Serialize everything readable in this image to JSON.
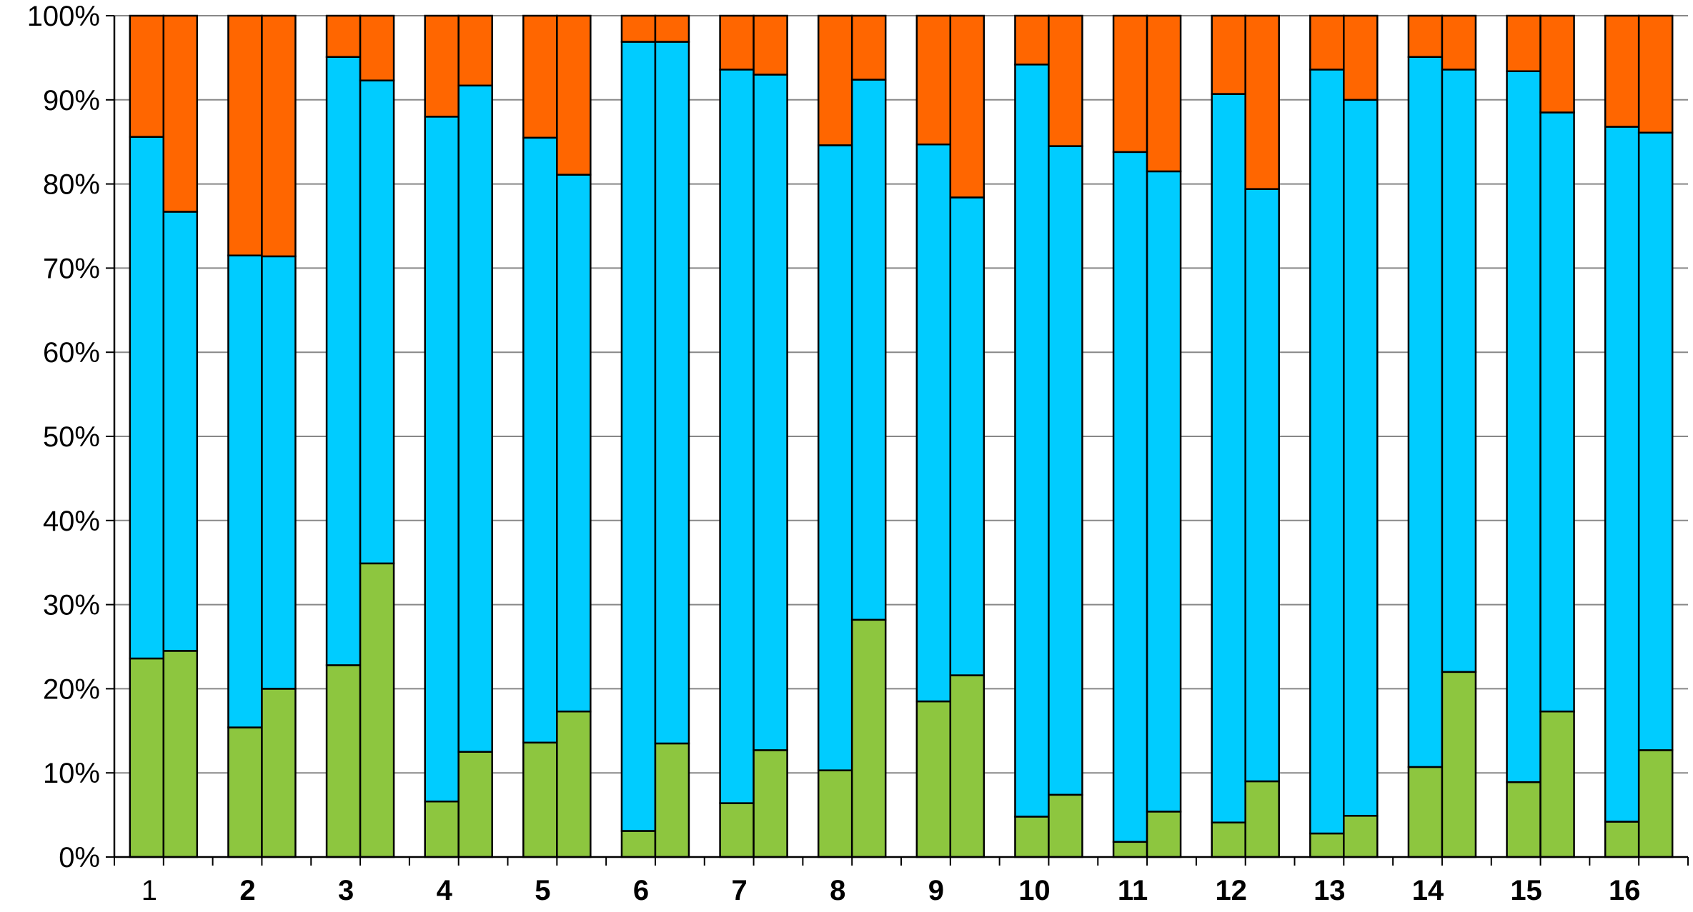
{
  "chart_data": {
    "type": "bar",
    "stacked": "percent",
    "bars_per_category": 2,
    "categories": [
      "1",
      "2",
      "3",
      "4",
      "5",
      "6",
      "7",
      "8",
      "9",
      "10",
      "11",
      "12",
      "13",
      "14",
      "15",
      "16"
    ],
    "category_label_bold": [
      false,
      true,
      true,
      true,
      true,
      true,
      true,
      true,
      true,
      true,
      true,
      true,
      true,
      true,
      true,
      true
    ],
    "y_ticks": [
      "0%",
      "10%",
      "20%",
      "30%",
      "40%",
      "50%",
      "60%",
      "70%",
      "80%",
      "90%",
      "100%"
    ],
    "ylim": [
      0,
      100
    ],
    "grid": true,
    "legend": "none",
    "series": [
      {
        "color": "#8DC63F",
        "values": [
          [
            23.6,
            24.5
          ],
          [
            15.4,
            20.0
          ],
          [
            22.8,
            34.9
          ],
          [
            6.6,
            12.5
          ],
          [
            13.6,
            17.3
          ],
          [
            3.1,
            13.5
          ],
          [
            6.4,
            12.7
          ],
          [
            10.3,
            28.2
          ],
          [
            18.5,
            21.6
          ],
          [
            4.8,
            7.4
          ],
          [
            1.8,
            5.4
          ],
          [
            4.1,
            9.0
          ],
          [
            2.8,
            4.9
          ],
          [
            10.7,
            22.0
          ],
          [
            8.9,
            17.3
          ],
          [
            4.2,
            12.7
          ]
        ]
      },
      {
        "color": "#00CCFF",
        "values": [
          [
            62.0,
            52.2
          ],
          [
            56.1,
            51.4
          ],
          [
            72.3,
            57.4
          ],
          [
            81.4,
            79.2
          ],
          [
            71.9,
            63.8
          ],
          [
            93.8,
            83.4
          ],
          [
            87.2,
            80.3
          ],
          [
            74.3,
            64.2
          ],
          [
            66.2,
            56.8
          ],
          [
            89.4,
            77.1
          ],
          [
            82.0,
            76.1
          ],
          [
            86.6,
            70.4
          ],
          [
            90.8,
            85.1
          ],
          [
            84.4,
            71.6
          ],
          [
            84.5,
            71.2
          ],
          [
            82.6,
            73.4
          ]
        ]
      },
      {
        "color": "#FF6600",
        "values": [
          [
            14.4,
            23.3
          ],
          [
            28.5,
            28.6
          ],
          [
            4.9,
            7.7
          ],
          [
            12.0,
            8.3
          ],
          [
            14.5,
            18.9
          ],
          [
            3.1,
            3.1
          ],
          [
            6.4,
            7.0
          ],
          [
            15.4,
            7.6
          ],
          [
            15.3,
            21.6
          ],
          [
            5.8,
            15.5
          ],
          [
            16.2,
            18.5
          ],
          [
            9.3,
            20.6
          ],
          [
            6.4,
            10.0
          ],
          [
            4.9,
            6.4
          ],
          [
            6.6,
            11.5
          ],
          [
            13.2,
            13.9
          ]
        ]
      }
    ]
  }
}
